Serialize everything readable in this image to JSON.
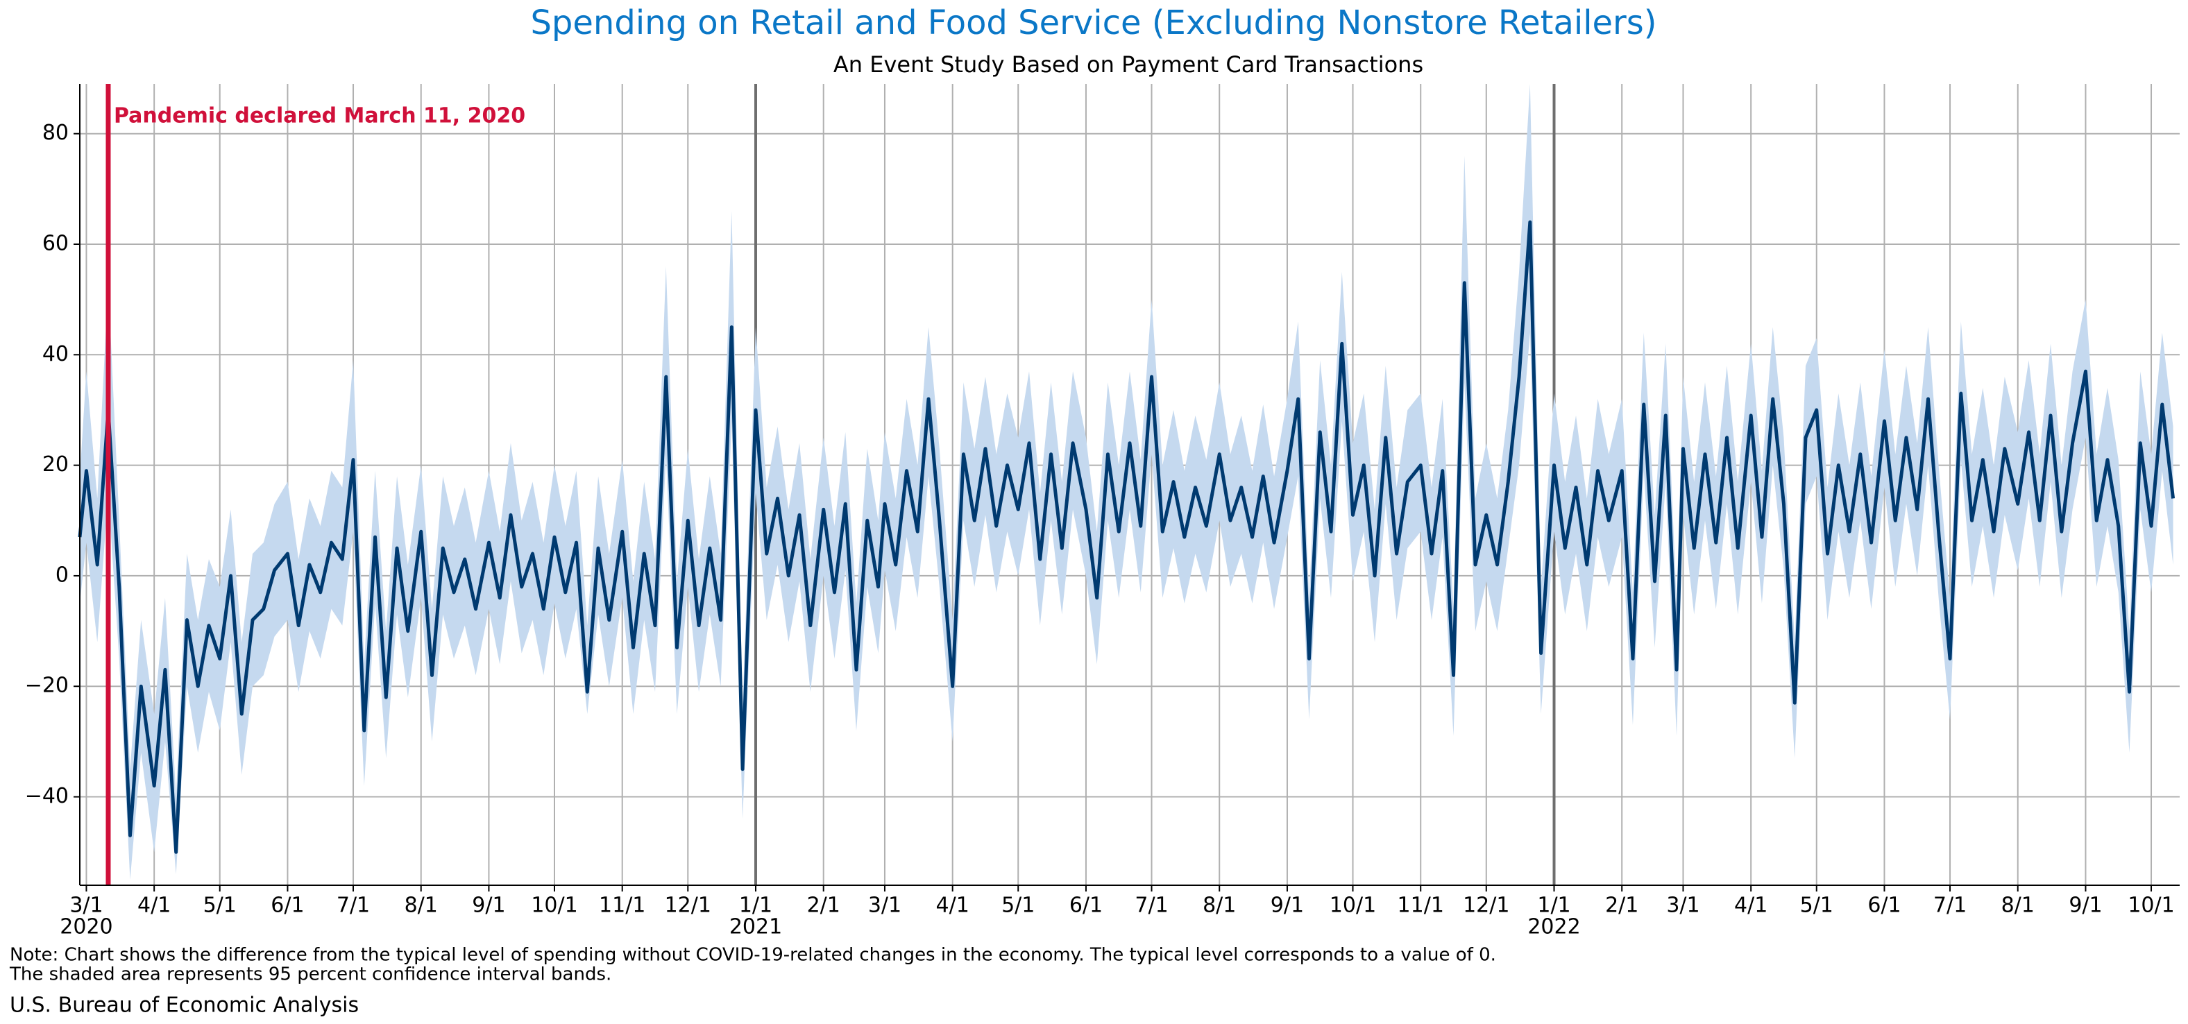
{
  "chart_data": {
    "type": "line",
    "title": "Spending on Retail and Food Service (Excluding Nonstore Retailers)",
    "subtitle": "An Event Study Based on Payment Card Transactions",
    "x": [
      "2020-02-27",
      "2020-03-01",
      "2020-03-06",
      "2020-03-11",
      "2020-03-16",
      "2020-03-21",
      "2020-03-26",
      "2020-04-01",
      "2020-04-06",
      "2020-04-11",
      "2020-04-16",
      "2020-04-21",
      "2020-04-26",
      "2020-05-01",
      "2020-05-06",
      "2020-05-11",
      "2020-05-16",
      "2020-05-21",
      "2020-05-26",
      "2020-06-01",
      "2020-06-06",
      "2020-06-11",
      "2020-06-16",
      "2020-06-21",
      "2020-06-26",
      "2020-07-01",
      "2020-07-06",
      "2020-07-11",
      "2020-07-16",
      "2020-07-21",
      "2020-07-26",
      "2020-08-01",
      "2020-08-06",
      "2020-08-11",
      "2020-08-16",
      "2020-08-21",
      "2020-08-26",
      "2020-09-01",
      "2020-09-06",
      "2020-09-11",
      "2020-09-16",
      "2020-09-21",
      "2020-09-26",
      "2020-10-01",
      "2020-10-06",
      "2020-10-11",
      "2020-10-16",
      "2020-10-21",
      "2020-10-26",
      "2020-11-01",
      "2020-11-06",
      "2020-11-11",
      "2020-11-16",
      "2020-11-21",
      "2020-11-26",
      "2020-12-01",
      "2020-12-06",
      "2020-12-11",
      "2020-12-16",
      "2020-12-21",
      "2020-12-26",
      "2021-01-01",
      "2021-01-06",
      "2021-01-11",
      "2021-01-16",
      "2021-01-21",
      "2021-01-26",
      "2021-02-01",
      "2021-02-06",
      "2021-02-11",
      "2021-02-16",
      "2021-02-21",
      "2021-02-26",
      "2021-03-01",
      "2021-03-06",
      "2021-03-11",
      "2021-03-16",
      "2021-03-21",
      "2021-03-26",
      "2021-04-01",
      "2021-04-06",
      "2021-04-11",
      "2021-04-16",
      "2021-04-21",
      "2021-04-26",
      "2021-05-01",
      "2021-05-06",
      "2021-05-11",
      "2021-05-16",
      "2021-05-21",
      "2021-05-26",
      "2021-06-01",
      "2021-06-06",
      "2021-06-11",
      "2021-06-16",
      "2021-06-21",
      "2021-06-26",
      "2021-07-01",
      "2021-07-06",
      "2021-07-11",
      "2021-07-16",
      "2021-07-21",
      "2021-07-26",
      "2021-08-01",
      "2021-08-06",
      "2021-08-11",
      "2021-08-16",
      "2021-08-21",
      "2021-08-26",
      "2021-09-01",
      "2021-09-06",
      "2021-09-11",
      "2021-09-16",
      "2021-09-21",
      "2021-09-26",
      "2021-10-01",
      "2021-10-06",
      "2021-10-11",
      "2021-10-16",
      "2021-10-21",
      "2021-10-26",
      "2021-11-01",
      "2021-11-06",
      "2021-11-11",
      "2021-11-16",
      "2021-11-21",
      "2021-11-26",
      "2021-12-01",
      "2021-12-06",
      "2021-12-11",
      "2021-12-16",
      "2021-12-21",
      "2021-12-26",
      "2022-01-01",
      "2022-01-06",
      "2022-01-11",
      "2022-01-16",
      "2022-01-21",
      "2022-01-26",
      "2022-02-01",
      "2022-02-06",
      "2022-02-11",
      "2022-02-16",
      "2022-02-21",
      "2022-02-26",
      "2022-03-01",
      "2022-03-06",
      "2022-03-11",
      "2022-03-16",
      "2022-03-21",
      "2022-03-26",
      "2022-04-01",
      "2022-04-06",
      "2022-04-11",
      "2022-04-16",
      "2022-04-21",
      "2022-04-26",
      "2022-05-01",
      "2022-05-06",
      "2022-05-11",
      "2022-05-16",
      "2022-05-21",
      "2022-05-26",
      "2022-06-01",
      "2022-06-06",
      "2022-06-11",
      "2022-06-16",
      "2022-06-21",
      "2022-06-26",
      "2022-07-01",
      "2022-07-06",
      "2022-07-11",
      "2022-07-16",
      "2022-07-21",
      "2022-07-26",
      "2022-08-01",
      "2022-08-06",
      "2022-08-11",
      "2022-08-16",
      "2022-08-21",
      "2022-08-26",
      "2022-09-01",
      "2022-09-06",
      "2022-09-11",
      "2022-09-16",
      "2022-09-21",
      "2022-09-26",
      "2022-10-01",
      "2022-10-06",
      "2022-10-11"
    ],
    "series": [
      {
        "color": "#003a70",
        "band_color": "#c5d9ef",
        "values": [
          7,
          19,
          2,
          30,
          -2,
          -47,
          -20,
          -38,
          -17,
          -50,
          -8,
          -20,
          -9,
          -15,
          0,
          -25,
          -8,
          -6,
          1,
          4,
          -9,
          2,
          -3,
          6,
          3,
          21,
          -28,
          7,
          -22,
          5,
          -10,
          8,
          -18,
          5,
          -3,
          3,
          -6,
          6,
          -4,
          11,
          -2,
          4,
          -6,
          7,
          -3,
          6,
          -21,
          5,
          -8,
          8,
          -13,
          4,
          -9,
          36,
          -13,
          10,
          -9,
          5,
          -8,
          45,
          -35,
          30,
          4,
          14,
          0,
          11,
          -9,
          12,
          -3,
          13,
          -17,
          10,
          -2,
          13,
          2,
          19,
          8,
          32,
          10,
          -20,
          22,
          10,
          23,
          9,
          20,
          12,
          24,
          3,
          22,
          5,
          24,
          12,
          -4,
          22,
          8,
          24,
          9,
          36,
          8,
          17,
          7,
          16,
          9,
          22,
          10,
          16,
          7,
          18,
          6,
          19,
          32,
          -15,
          26,
          8,
          42,
          11,
          20,
          0,
          25,
          4,
          17,
          20,
          4,
          19,
          -18,
          53,
          2,
          11,
          2,
          17,
          36,
          64,
          -14,
          20,
          5,
          16,
          2,
          19,
          10,
          19,
          -15,
          31,
          -1,
          29,
          -17,
          23,
          5,
          22,
          6,
          25,
          5,
          29,
          7,
          32,
          13,
          -23,
          25,
          30,
          4,
          20,
          8,
          22,
          6,
          28,
          10,
          25,
          12,
          32,
          7,
          -15,
          33,
          10,
          21,
          8,
          23,
          13,
          26,
          10,
          29,
          8,
          24,
          37,
          10,
          21,
          9,
          -21,
          24,
          9,
          31,
          14
        ],
        "lower": [
          -5,
          6,
          -12,
          15,
          -15,
          -55,
          -32,
          -50,
          -30,
          -54,
          -20,
          -32,
          -21,
          -28,
          -12,
          -36,
          -20,
          -18,
          -11,
          -8,
          -21,
          -10,
          -15,
          -6,
          -9,
          8,
          -38,
          -5,
          -33,
          -7,
          -22,
          -4,
          -30,
          -7,
          -15,
          -9,
          -18,
          -6,
          -16,
          -1,
          -14,
          -8,
          -18,
          -5,
          -15,
          -6,
          -25,
          -7,
          -20,
          -4,
          -25,
          -8,
          -21,
          22,
          -25,
          -2,
          -21,
          -7,
          -20,
          28,
          -44,
          15,
          -8,
          2,
          -12,
          -1,
          -21,
          0,
          -15,
          1,
          -28,
          -2,
          -14,
          1,
          -10,
          7,
          -4,
          18,
          -2,
          -30,
          10,
          -2,
          11,
          -3,
          8,
          0,
          12,
          -9,
          10,
          -7,
          12,
          0,
          -16,
          10,
          -4,
          12,
          -3,
          22,
          -4,
          5,
          -5,
          4,
          -3,
          10,
          -2,
          4,
          -5,
          6,
          -6,
          7,
          18,
          -26,
          14,
          -4,
          28,
          -1,
          8,
          -12,
          13,
          -8,
          5,
          8,
          -8,
          7,
          -29,
          35,
          -10,
          -1,
          -10,
          5,
          20,
          44,
          -25,
          8,
          -7,
          4,
          -10,
          7,
          -2,
          7,
          -27,
          19,
          -13,
          17,
          -29,
          11,
          -7,
          10,
          -6,
          13,
          -7,
          17,
          -5,
          20,
          1,
          -33,
          13,
          18,
          -8,
          8,
          -4,
          10,
          -6,
          16,
          -2,
          13,
          0,
          20,
          -5,
          -26,
          21,
          -2,
          9,
          -4,
          11,
          1,
          14,
          -2,
          17,
          -4,
          12,
          25,
          -2,
          9,
          -3,
          -32,
          12,
          -3,
          19,
          2
        ],
        "upper": [
          18,
          37,
          14,
          53,
          10,
          -35,
          -8,
          -25,
          -4,
          -40,
          4,
          -8,
          3,
          -2,
          12,
          -12,
          4,
          6,
          13,
          17,
          3,
          14,
          9,
          19,
          16,
          39,
          -16,
          19,
          -10,
          18,
          2,
          20,
          -6,
          18,
          9,
          16,
          6,
          19,
          8,
          24,
          10,
          17,
          6,
          20,
          9,
          19,
          -9,
          18,
          4,
          21,
          -1,
          17,
          3,
          56,
          -1,
          23,
          3,
          18,
          4,
          66,
          -24,
          45,
          16,
          27,
          12,
          24,
          3,
          25,
          9,
          26,
          -5,
          23,
          10,
          26,
          14,
          32,
          20,
          45,
          23,
          -8,
          35,
          23,
          36,
          22,
          33,
          25,
          37,
          15,
          35,
          17,
          37,
          25,
          8,
          35,
          20,
          37,
          21,
          50,
          20,
          30,
          19,
          29,
          21,
          35,
          22,
          29,
          19,
          31,
          18,
          32,
          46,
          -4,
          39,
          20,
          55,
          24,
          33,
          12,
          38,
          16,
          30,
          33,
          16,
          32,
          -6,
          76,
          14,
          24,
          14,
          30,
          55,
          89,
          -2,
          33,
          17,
          29,
          14,
          32,
          22,
          32,
          -3,
          44,
          11,
          42,
          -5,
          36,
          17,
          35,
          18,
          38,
          17,
          42,
          19,
          45,
          25,
          -12,
          38,
          43,
          16,
          33,
          20,
          35,
          18,
          41,
          22,
          38,
          24,
          45,
          19,
          -4,
          46,
          22,
          34,
          20,
          36,
          26,
          39,
          22,
          42,
          20,
          37,
          50,
          22,
          34,
          21,
          -10,
          37,
          22,
          44,
          27
        ]
      }
    ],
    "xlim": [
      "2020-02-27",
      "2022-10-14"
    ],
    "ylim": [
      -56,
      89
    ],
    "yticks": [
      {
        "value": -40,
        "label": "−40"
      },
      {
        "value": -20,
        "label": "−20"
      },
      0,
      20,
      40,
      60,
      80
    ],
    "xticks": [
      {
        "value": "2020-03-01",
        "label": "3/1"
      },
      {
        "value": "2020-04-01",
        "label": "4/1"
      },
      {
        "value": "2020-05-01",
        "label": "5/1"
      },
      {
        "value": "2020-06-01",
        "label": "6/1"
      },
      {
        "value": "2020-07-01",
        "label": "7/1"
      },
      {
        "value": "2020-08-01",
        "label": "8/1"
      },
      {
        "value": "2020-09-01",
        "label": "9/1"
      },
      {
        "value": "2020-10-01",
        "label": "10/1"
      },
      {
        "value": "2020-11-01",
        "label": "11/1"
      },
      {
        "value": "2020-12-01",
        "label": "12/1"
      },
      {
        "value": "2021-01-01",
        "label": "1/1"
      },
      {
        "value": "2021-02-01",
        "label": "2/1"
      },
      {
        "value": "2021-03-01",
        "label": "3/1"
      },
      {
        "value": "2021-04-01",
        "label": "4/1"
      },
      {
        "value": "2021-05-01",
        "label": "5/1"
      },
      {
        "value": "2021-06-01",
        "label": "6/1"
      },
      {
        "value": "2021-07-01",
        "label": "7/1"
      },
      {
        "value": "2021-08-01",
        "label": "8/1"
      },
      {
        "value": "2021-09-01",
        "label": "9/1"
      },
      {
        "value": "2021-10-01",
        "label": "10/1"
      },
      {
        "value": "2021-11-01",
        "label": "11/1"
      },
      {
        "value": "2021-12-01",
        "label": "12/1"
      },
      {
        "value": "2022-01-01",
        "label": "1/1"
      },
      {
        "value": "2022-02-01",
        "label": "2/1"
      },
      {
        "value": "2022-03-01",
        "label": "3/1"
      },
      {
        "value": "2022-04-01",
        "label": "4/1"
      },
      {
        "value": "2022-05-01",
        "label": "5/1"
      },
      {
        "value": "2022-06-01",
        "label": "6/1"
      },
      {
        "value": "2022-07-01",
        "label": "7/1"
      },
      {
        "value": "2022-08-01",
        "label": "8/1"
      },
      {
        "value": "2022-09-01",
        "label": "9/1"
      },
      {
        "value": "2022-10-01",
        "label": "10/1"
      }
    ],
    "year_labels": [
      {
        "value": "2020-03-01",
        "label": "2020"
      },
      {
        "value": "2021-01-01",
        "label": "2021"
      },
      {
        "value": "2022-01-01",
        "label": "2022"
      }
    ],
    "year_lines": [
      "2021-01-01",
      "2022-01-01"
    ],
    "grid": true,
    "event": {
      "date": "2020-03-11",
      "label": "Pandemic declared March 11, 2020",
      "color": "#d0103a"
    },
    "notes": [
      "Note: Chart shows the difference from the typical level of spending without COVID-19-related changes in the economy. The typical level corresponds to a value of 0.",
      "The shaded area represents 95 percent confidence interval bands."
    ],
    "source": "U.S. Bureau of Economic Analysis"
  }
}
